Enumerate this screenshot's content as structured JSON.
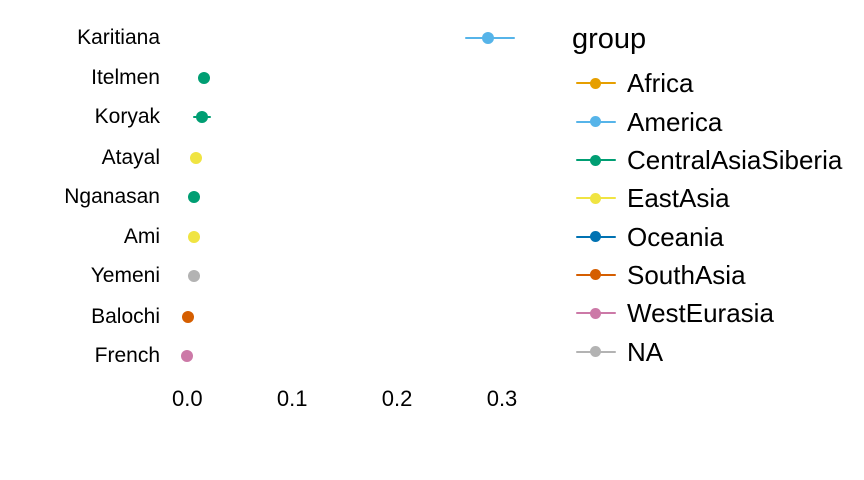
{
  "chart_data": {
    "type": "scatter",
    "subtype": "horizontal-pointrange",
    "title": "",
    "xlabel": "",
    "ylabel": "",
    "grid": false,
    "background": "#ffffff",
    "legend_position": "right",
    "legend_title": "group",
    "x_ticks": [
      {
        "label": "0.0",
        "value": 0.0
      },
      {
        "label": "0.1",
        "value": 0.1
      },
      {
        "label": "0.2",
        "value": 0.2
      },
      {
        "label": "0.3",
        "value": 0.3
      }
    ],
    "xlim": [
      -0.017,
      0.355
    ],
    "categories": [
      "Karitiana",
      "Itelmen",
      "Koryak",
      "Atayal",
      "Nganasan",
      "Ami",
      "Yemeni",
      "Balochi",
      "French"
    ],
    "points": [
      {
        "label": "Karitiana",
        "group": "America",
        "value": 0.287,
        "ci_low": 0.265,
        "ci_high": 0.312
      },
      {
        "label": "Itelmen",
        "group": "CentralAsiaSiberia",
        "value": 0.016,
        "ci_low": 0.012,
        "ci_high": 0.02
      },
      {
        "label": "Koryak",
        "group": "CentralAsiaSiberia",
        "value": 0.014,
        "ci_low": 0.005,
        "ci_high": 0.023
      },
      {
        "label": "Atayal",
        "group": "EastAsia",
        "value": 0.008,
        "ci_low": 0.005,
        "ci_high": 0.011
      },
      {
        "label": "Nganasan",
        "group": "CentralAsiaSiberia",
        "value": 0.006,
        "ci_low": 0.003,
        "ci_high": 0.009
      },
      {
        "label": "Ami",
        "group": "EastAsia",
        "value": 0.006,
        "ci_low": 0.003,
        "ci_high": 0.009
      },
      {
        "label": "Yemeni",
        "group": "NA",
        "value": 0.006,
        "ci_low": 0.003,
        "ci_high": 0.009
      },
      {
        "label": "Balochi",
        "group": "SouthAsia",
        "value": 0.001,
        "ci_low": 0.0,
        "ci_high": 0.002
      },
      {
        "label": "French",
        "group": "WestEurasia",
        "value": 0.0,
        "ci_low": -0.001,
        "ci_high": 0.001
      }
    ],
    "legend": [
      {
        "label": "Africa",
        "color": "#E69F00"
      },
      {
        "label": "America",
        "color": "#56B4E9"
      },
      {
        "label": "CentralAsiaSiberia",
        "color": "#009E73"
      },
      {
        "label": "EastAsia",
        "color": "#F0E442"
      },
      {
        "label": "Oceania",
        "color": "#0072B2"
      },
      {
        "label": "SouthAsia",
        "color": "#D55E00"
      },
      {
        "label": "WestEurasia",
        "color": "#CC79A7"
      },
      {
        "label": "NA",
        "color": "#B3B3B3"
      }
    ],
    "group_colors": {
      "Africa": "#E69F00",
      "America": "#56B4E9",
      "CentralAsiaSiberia": "#009E73",
      "EastAsia": "#F0E442",
      "Oceania": "#0072B2",
      "SouthAsia": "#D55E00",
      "WestEurasia": "#CC79A7",
      "NA": "#B3B3B3"
    }
  }
}
